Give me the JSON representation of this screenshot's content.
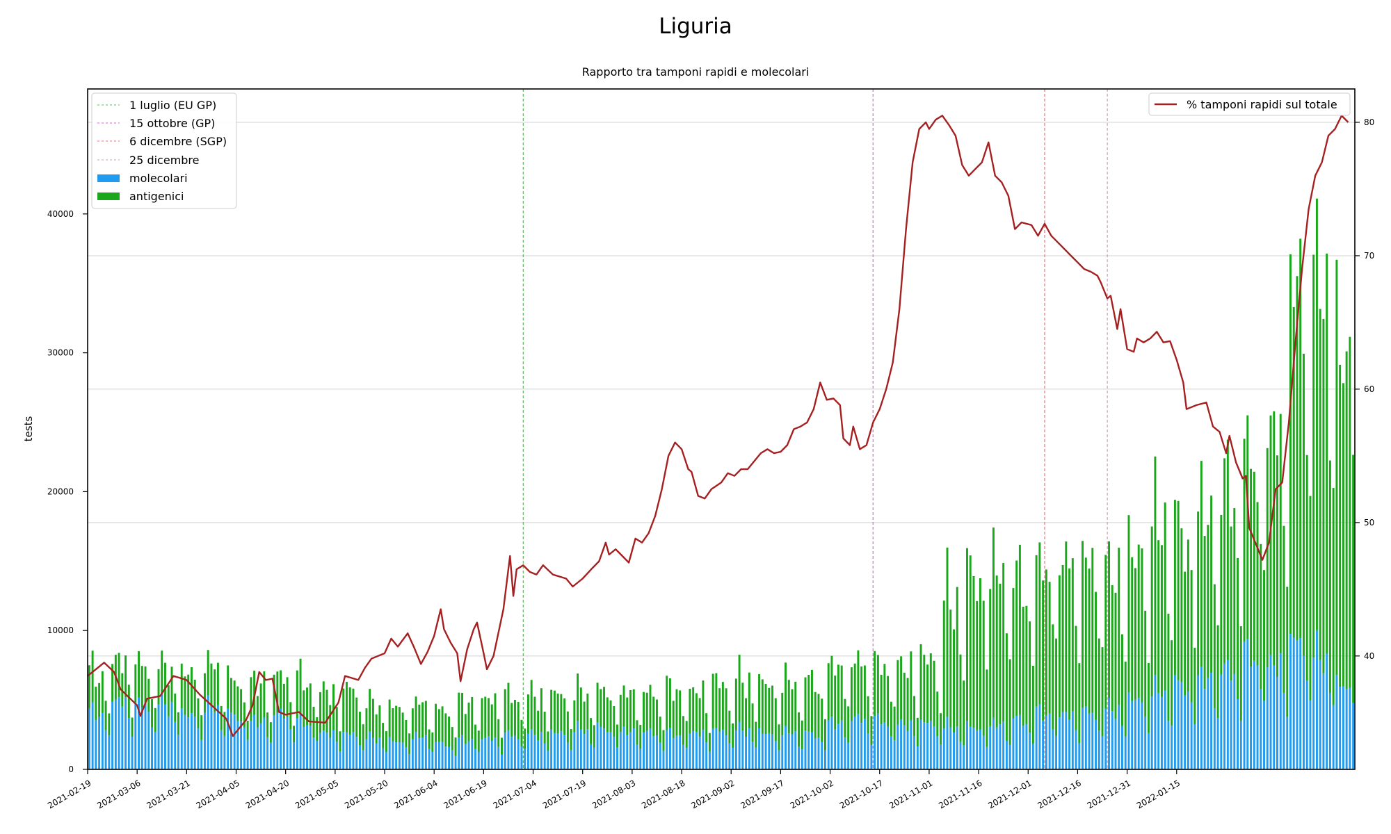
{
  "chart_data": {
    "type": "bar+line",
    "title": "Liguria",
    "subtitle": "Rapporto tra tamponi rapidi e molecolari",
    "ylabel": "tests",
    "xlabel": "",
    "ylim": [
      0,
      49000
    ],
    "y2lim": [
      31.5,
      82.5
    ],
    "y_ticks": [
      0,
      10000,
      20000,
      30000,
      40000
    ],
    "y2_ticks": [
      40,
      50,
      60,
      70,
      80
    ],
    "grid": "horizontal (right axis)",
    "start_date": "2021-02-19",
    "x_ticks": [
      "2021-02-19",
      "2021-03-06",
      "2021-03-21",
      "2021-04-05",
      "2021-04-20",
      "2021-05-05",
      "2021-05-20",
      "2021-06-04",
      "2021-06-19",
      "2021-07-04",
      "2021-07-19",
      "2021-08-03",
      "2021-08-18",
      "2021-09-02",
      "2021-09-17",
      "2021-10-02",
      "2021-10-17",
      "2021-11-01",
      "2021-11-16",
      "2021-12-01",
      "2021-12-16",
      "2021-12-31",
      "2022-01-15"
    ],
    "vlines": [
      {
        "label": "1 luglio (EU GP)",
        "day": 132,
        "color": "#5fb85f"
      },
      {
        "label": "15 ottobre (GP)",
        "day": 238,
        "color": "#d36cc9"
      },
      {
        "label": "6 dicembre (SGP)",
        "day": 290,
        "color": "#e8737a"
      },
      {
        "label": "25 dicembre",
        "day": 309,
        "color": "#c8a0b4"
      }
    ],
    "legend_left": [
      "1 luglio (EU GP)",
      "15 ottobre (GP)",
      "6 dicembre (SGP)",
      "25 dicembre",
      "molecolari",
      "antigenici"
    ],
    "legend_right": [
      "% tamponi rapidi sul totale"
    ],
    "colors": {
      "molecolari": "#1f9cf0",
      "antigenici": "#1aa81a",
      "line": "#a52121",
      "grid": "#d0d0d0"
    },
    "series": [
      {
        "name": "molecolari",
        "type": "bar",
        "stacked_base": true,
        "weekly_levels": [
          4000,
          4900,
          4500,
          4600,
          3900,
          4400,
          3800,
          3400,
          3900,
          3300,
          2600,
          2500,
          2200,
          2000,
          2300,
          1800,
          2100,
          2200,
          2400,
          2500,
          2600,
          2800,
          2900,
          2700,
          2600,
          2500,
          2600,
          2700,
          2800,
          2600,
          2600,
          2500,
          3300,
          3600,
          3400,
          3200,
          3300,
          3000,
          3000,
          3200,
          3500,
          4000,
          3900,
          4000,
          4300,
          5000,
          5500,
          6000,
          6500,
          7000,
          8000,
          7500,
          9000,
          8000,
          6000
        ]
      },
      {
        "name": "antigenici",
        "type": "bar",
        "stacked_on": "molecolari",
        "weekly_levels": [
          2800,
          2900,
          2800,
          2700,
          3000,
          3000,
          2500,
          2800,
          2700,
          3000,
          3000,
          3200,
          2500,
          2500,
          2400,
          2400,
          2700,
          2800,
          2700,
          2800,
          2800,
          2700,
          2700,
          2800,
          2800,
          3200,
          3000,
          3400,
          3600,
          3600,
          3600,
          3800,
          4100,
          4000,
          3900,
          4200,
          4600,
          9000,
          11000,
          11000,
          10000,
          10500,
          11000,
          10500,
          10000,
          10500,
          12000,
          11000,
          12000,
          13000,
          14000,
          17000,
          25000,
          27000,
          24000
        ]
      },
      {
        "name": "% tamponi rapidi sul totale",
        "type": "line",
        "axis": "right",
        "points": [
          [
            0,
            38.5
          ],
          [
            5,
            39.5
          ],
          [
            8,
            38.8
          ],
          [
            10,
            37.5
          ],
          [
            15,
            36.3
          ],
          [
            16,
            35.5
          ],
          [
            18,
            36.8
          ],
          [
            22,
            37
          ],
          [
            26,
            38.5
          ],
          [
            30,
            38.2
          ],
          [
            34,
            37.1
          ],
          [
            38,
            36.2
          ],
          [
            42,
            35.3
          ],
          [
            44,
            34
          ],
          [
            48,
            35.2
          ],
          [
            50,
            36.3
          ],
          [
            52,
            38.8
          ],
          [
            54,
            38.2
          ],
          [
            56,
            38.3
          ],
          [
            58,
            35.8
          ],
          [
            60,
            35.6
          ],
          [
            64,
            35.8
          ],
          [
            67,
            35.1
          ],
          [
            72,
            35
          ],
          [
            76,
            36.5
          ],
          [
            78,
            38.5
          ],
          [
            82,
            38.2
          ],
          [
            84,
            39.1
          ],
          [
            86,
            39.8
          ],
          [
            90,
            40.2
          ],
          [
            92,
            41.3
          ],
          [
            94,
            40.7
          ],
          [
            97,
            41.7
          ],
          [
            99,
            40.6
          ],
          [
            101,
            39.4
          ],
          [
            103,
            40.3
          ],
          [
            105,
            41.5
          ],
          [
            106,
            42.5
          ],
          [
            107,
            43.5
          ],
          [
            108,
            42
          ],
          [
            110,
            41
          ],
          [
            112,
            40.2
          ],
          [
            113,
            38.1
          ],
          [
            115,
            40.5
          ],
          [
            117,
            42
          ],
          [
            118,
            42.5
          ],
          [
            120,
            40.2
          ],
          [
            121,
            39
          ],
          [
            123,
            40
          ],
          [
            126,
            43.5
          ],
          [
            128,
            47.5
          ],
          [
            129,
            44.5
          ],
          [
            130,
            46.5
          ],
          [
            132,
            46.8
          ],
          [
            134,
            46.3
          ],
          [
            136,
            46.1
          ],
          [
            138,
            46.8
          ],
          [
            141,
            46.1
          ],
          [
            145,
            45.8
          ],
          [
            147,
            45.2
          ],
          [
            150,
            45.8
          ],
          [
            153,
            46.6
          ],
          [
            155,
            47.1
          ],
          [
            157,
            48.5
          ],
          [
            158,
            47.6
          ],
          [
            160,
            48
          ],
          [
            162,
            47.5
          ],
          [
            164,
            47
          ],
          [
            166,
            48.8
          ],
          [
            168,
            48.5
          ],
          [
            170,
            49.2
          ],
          [
            172,
            50.5
          ],
          [
            174,
            52.5
          ],
          [
            176,
            55
          ],
          [
            178,
            56
          ],
          [
            180,
            55.5
          ],
          [
            182,
            54
          ],
          [
            183,
            53.8
          ],
          [
            185,
            52
          ],
          [
            187,
            51.8
          ],
          [
            189,
            52.5
          ],
          [
            192,
            53
          ],
          [
            194,
            53.7
          ],
          [
            196,
            53.5
          ],
          [
            198,
            54
          ],
          [
            200,
            54
          ],
          [
            202,
            54.6
          ],
          [
            204,
            55.2
          ],
          [
            206,
            55.5
          ],
          [
            208,
            55.2
          ],
          [
            210,
            55.3
          ],
          [
            212,
            55.8
          ],
          [
            214,
            57
          ],
          [
            216,
            57.2
          ],
          [
            218,
            57.5
          ],
          [
            220,
            58.5
          ],
          [
            222,
            60.5
          ],
          [
            224,
            59.2
          ],
          [
            226,
            59.3
          ],
          [
            228,
            58.8
          ],
          [
            229,
            56.3
          ],
          [
            231,
            55.8
          ],
          [
            232,
            57.2
          ],
          [
            234,
            55.5
          ],
          [
            236,
            55.8
          ],
          [
            238,
            57.5
          ],
          [
            240,
            58.5
          ],
          [
            242,
            60
          ],
          [
            244,
            62
          ],
          [
            246,
            66
          ],
          [
            248,
            72
          ],
          [
            250,
            77
          ],
          [
            252,
            79.5
          ],
          [
            254,
            80
          ],
          [
            255,
            79.5
          ],
          [
            257,
            80.2
          ],
          [
            259,
            80.5
          ],
          [
            261,
            79.8
          ],
          [
            263,
            79
          ],
          [
            265,
            76.8
          ],
          [
            267,
            76
          ],
          [
            269,
            76.5
          ],
          [
            271,
            77
          ],
          [
            273,
            78.5
          ],
          [
            275,
            76
          ],
          [
            277,
            75.5
          ],
          [
            279,
            74.5
          ],
          [
            281,
            72
          ],
          [
            283,
            72.5
          ],
          [
            286,
            72.3
          ],
          [
            288,
            71.5
          ],
          [
            290,
            72.4
          ],
          [
            292,
            71.5
          ],
          [
            294,
            71
          ],
          [
            296,
            70.5
          ],
          [
            298,
            70
          ],
          [
            300,
            69.5
          ],
          [
            302,
            69
          ],
          [
            304,
            68.8
          ],
          [
            306,
            68.5
          ],
          [
            307,
            68
          ],
          [
            309,
            66.8
          ],
          [
            310,
            67
          ],
          [
            312,
            64.5
          ],
          [
            313,
            66
          ],
          [
            315,
            63
          ],
          [
            317,
            62.8
          ],
          [
            318,
            63.8
          ],
          [
            320,
            63.5
          ],
          [
            322,
            63.8
          ],
          [
            324,
            64.3
          ],
          [
            326,
            63.5
          ],
          [
            328,
            63.6
          ],
          [
            330,
            62.2
          ],
          [
            332,
            60.5
          ],
          [
            333,
            58.5
          ],
          [
            336,
            58.8
          ],
          [
            339,
            59
          ],
          [
            341,
            57.2
          ],
          [
            343,
            56.8
          ],
          [
            345,
            55.2
          ],
          [
            346,
            56.5
          ],
          [
            348,
            54.5
          ],
          [
            350,
            53.3
          ],
          [
            351,
            53.5
          ],
          [
            352,
            49.6
          ],
          [
            354,
            48.4
          ],
          [
            356,
            47.2
          ],
          [
            358,
            48.5
          ],
          [
            360,
            52.5
          ],
          [
            362,
            53
          ],
          [
            364,
            57.5
          ],
          [
            366,
            63.5
          ],
          [
            368,
            69
          ],
          [
            370,
            73.5
          ],
          [
            372,
            76
          ],
          [
            374,
            77
          ],
          [
            376,
            79
          ],
          [
            378,
            79.5
          ],
          [
            380,
            80.5
          ],
          [
            382,
            80
          ]
        ]
      }
    ]
  }
}
